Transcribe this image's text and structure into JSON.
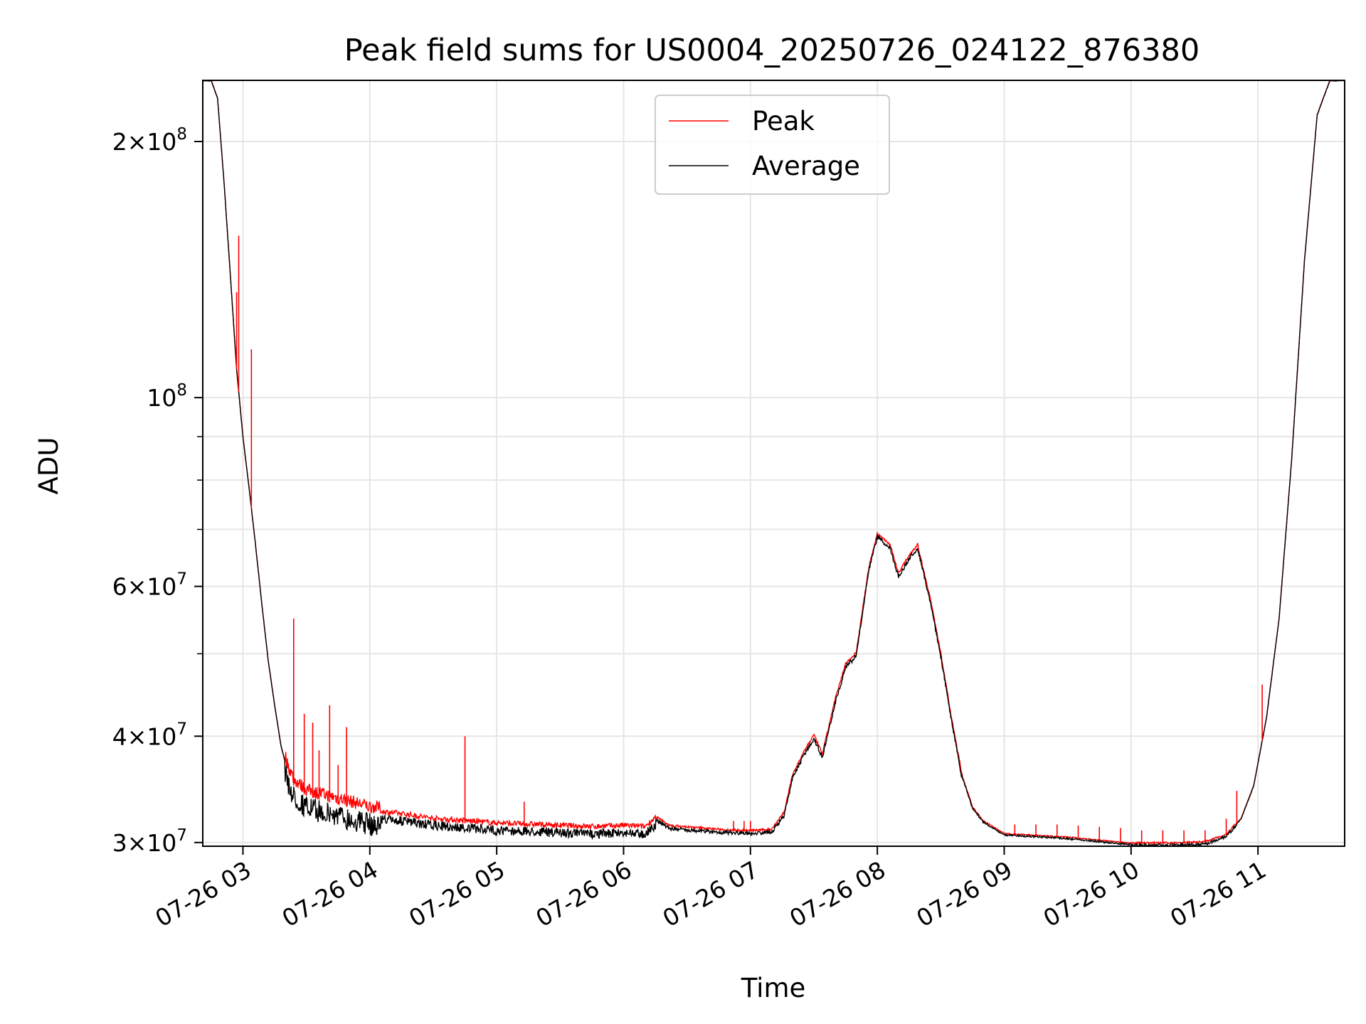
{
  "chart_data": {
    "type": "line",
    "title": "Peak field sums for US0004_20250726_024122_876380",
    "xlabel": "Time",
    "ylabel": "ADU",
    "x_unit": "date-hour",
    "xlim": [
      "07-26 02:41",
      "07-26 11:41"
    ],
    "ylim": [
      29700000,
      236000000
    ],
    "yscale": "log",
    "grid": true,
    "legend_position": "top-center",
    "x_ticks": [
      "07-26 03",
      "07-26 04",
      "07-26 05",
      "07-26 06",
      "07-26 07",
      "07-26 08",
      "07-26 09",
      "07-26 10",
      "07-26 11"
    ],
    "y_ticks": [
      {
        "value": 30000000,
        "mant": "3",
        "exp": "7"
      },
      {
        "value": 40000000,
        "mant": "4",
        "exp": "7"
      },
      {
        "value": 60000000,
        "mant": "6",
        "exp": "7"
      },
      {
        "value": 100000000,
        "mant": "",
        "exp": "8"
      },
      {
        "value": 200000000,
        "mant": "2",
        "exp": "8"
      }
    ],
    "series": [
      {
        "name": "Average",
        "color": "#000000",
        "x": [
          "07-26 02:41",
          "07-26 02:45",
          "07-26 02:48",
          "07-26 02:51",
          "07-26 02:54",
          "07-26 02:57",
          "07-26 03:00",
          "07-26 03:03",
          "07-26 03:06",
          "07-26 03:09",
          "07-26 03:12",
          "07-26 03:15",
          "07-26 03:18",
          "07-26 03:21",
          "07-26 03:24",
          "07-26 03:30",
          "07-26 03:40",
          "07-26 03:50",
          "07-26 04:00",
          "07-26 04:15",
          "07-26 04:30",
          "07-26 04:45",
          "07-26 05:00",
          "07-26 05:15",
          "07-26 05:30",
          "07-26 05:45",
          "07-26 06:00",
          "07-26 06:10",
          "07-26 06:16",
          "07-26 06:22",
          "07-26 06:30",
          "07-26 06:45",
          "07-26 07:00",
          "07-26 07:10",
          "07-26 07:16",
          "07-26 07:20",
          "07-26 07:26",
          "07-26 07:30",
          "07-26 07:34",
          "07-26 07:40",
          "07-26 07:45",
          "07-26 07:50",
          "07-26 07:56",
          "07-26 08:00",
          "07-26 08:06",
          "07-26 08:10",
          "07-26 08:15",
          "07-26 08:19",
          "07-26 08:25",
          "07-26 08:30",
          "07-26 08:35",
          "07-26 08:40",
          "07-26 08:45",
          "07-26 08:50",
          "07-26 09:00",
          "07-26 09:30",
          "07-26 10:00",
          "07-26 10:20",
          "07-26 10:35",
          "07-26 10:45",
          "07-26 10:52",
          "07-26 10:58",
          "07-26 11:04",
          "07-26 11:10",
          "07-26 11:16",
          "07-26 11:22",
          "07-26 11:28",
          "07-26 11:34",
          "07-26 11:41"
        ],
        "values": [
          236000000,
          236000000,
          225000000,
          180000000,
          140000000,
          108000000,
          90000000,
          78000000,
          67000000,
          57000000,
          49000000,
          43500000,
          39000000,
          36500000,
          35000000,
          34000000,
          33500000,
          33000000,
          32500000,
          32200000,
          31800000,
          31600000,
          31400000,
          31300000,
          31200000,
          31100000,
          31200000,
          31100000,
          32000000,
          31300000,
          31200000,
          31000000,
          30900000,
          31000000,
          32500000,
          36000000,
          38500000,
          40000000,
          38000000,
          44000000,
          48500000,
          50000000,
          63000000,
          69000000,
          67000000,
          62000000,
          65000000,
          67000000,
          58000000,
          50000000,
          42000000,
          36000000,
          33000000,
          31800000,
          30700000,
          30400000,
          29900000,
          29900000,
          30000000,
          30600000,
          32000000,
          35000000,
          42000000,
          55000000,
          85000000,
          145000000,
          215000000,
          236000000,
          236000000
        ]
      },
      {
        "name": "Peak",
        "color": "#ff0000",
        "spikes": [
          {
            "x": "07-26 02:57",
            "value": 133000000
          },
          {
            "x": "07-26 02:58",
            "value": 155000000
          },
          {
            "x": "07-26 03:04",
            "value": 114000000
          },
          {
            "x": "07-26 03:24",
            "value": 55000000
          },
          {
            "x": "07-26 03:29",
            "value": 42500000
          },
          {
            "x": "07-26 03:33",
            "value": 41500000
          },
          {
            "x": "07-26 03:36",
            "value": 38500000
          },
          {
            "x": "07-26 03:41",
            "value": 43500000
          },
          {
            "x": "07-26 03:45",
            "value": 37000000
          },
          {
            "x": "07-26 03:49",
            "value": 41000000
          },
          {
            "x": "07-26 04:45",
            "value": 40000000
          },
          {
            "x": "07-26 05:13",
            "value": 33500000
          },
          {
            "x": "07-26 06:52",
            "value": 31800000
          },
          {
            "x": "07-26 06:57",
            "value": 31800000
          },
          {
            "x": "07-26 07:00",
            "value": 31800000
          },
          {
            "x": "07-26 09:05",
            "value": 31500000
          },
          {
            "x": "07-26 09:15",
            "value": 31500000
          },
          {
            "x": "07-26 09:25",
            "value": 31500000
          },
          {
            "x": "07-26 09:35",
            "value": 31400000
          },
          {
            "x": "07-26 09:45",
            "value": 31300000
          },
          {
            "x": "07-26 09:55",
            "value": 31200000
          },
          {
            "x": "07-26 10:05",
            "value": 31000000
          },
          {
            "x": "07-26 10:15",
            "value": 31000000
          },
          {
            "x": "07-26 10:25",
            "value": 31000000
          },
          {
            "x": "07-26 10:35",
            "value": 31000000
          },
          {
            "x": "07-26 10:45",
            "value": 32000000
          },
          {
            "x": "07-26 10:50",
            "value": 34500000
          },
          {
            "x": "07-26 11:02",
            "value": 46000000
          }
        ]
      }
    ]
  }
}
